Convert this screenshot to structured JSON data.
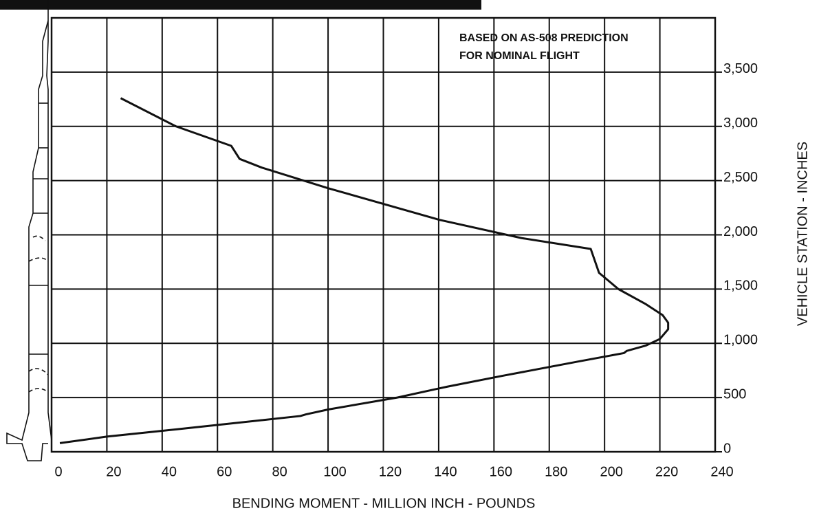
{
  "chart_data": {
    "type": "line",
    "annotation": [
      "BASED ON AS-508 PREDICTION",
      "FOR NOMINAL FLIGHT"
    ],
    "x_label": "BENDING MOMENT - MILLION INCH - POUNDS",
    "y_label": "VEHICLE STATION - INCHES",
    "x": [
      3,
      20,
      50,
      90,
      92,
      100,
      125,
      143,
      163,
      190,
      207,
      208,
      215,
      220,
      223,
      223,
      221,
      215,
      205,
      198,
      195,
      170,
      140,
      100,
      76,
      68,
      65,
      45,
      25
    ],
    "series": [
      {
        "color": "#111111",
        "values": [
          80,
          140,
          220,
          330,
          345,
          390,
          500,
          600,
          700,
          830,
          910,
          930,
          980,
          1040,
          1130,
          1190,
          1260,
          1360,
          1500,
          1650,
          1870,
          1970,
          2140,
          2430,
          2620,
          2700,
          2820,
          3000,
          3260
        ]
      }
    ],
    "xlim": [
      0,
      240
    ],
    "xticks": [
      0,
      20,
      40,
      60,
      80,
      100,
      120,
      140,
      160,
      180,
      200,
      220,
      240
    ],
    "ylim": [
      0,
      4000
    ],
    "yticks": [
      0,
      500,
      {
        "value": 1000,
        "label": "1,000"
      },
      {
        "value": 1500,
        "label": "1,500"
      },
      {
        "value": 2000,
        "label": "2,000"
      },
      {
        "value": 2500,
        "label": "2,500"
      },
      {
        "value": 3000,
        "label": "3,000"
      },
      {
        "value": 3500,
        "label": "3,500"
      }
    ],
    "grid": true
  }
}
